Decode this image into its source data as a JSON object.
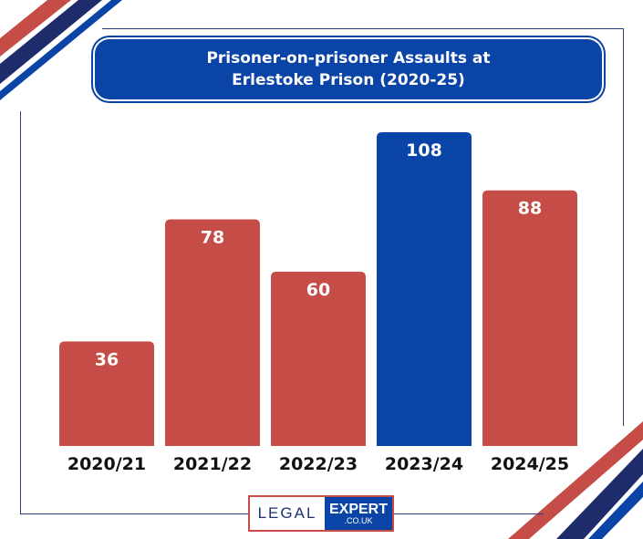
{
  "colors": {
    "bar_default": "#c64d47",
    "bar_highlight": "#0a44a6",
    "title_bg": "#0a44a6",
    "frame": "#2a3f7a"
  },
  "chart_data": {
    "type": "bar",
    "title_lines": [
      "Prisoner-on-prisoner Assaults at",
      "Erlestoke Prison (2020-25)"
    ],
    "categories": [
      "2020/21",
      "2021/22",
      "2022/23",
      "2023/24",
      "2024/25"
    ],
    "values": [
      36,
      78,
      60,
      108,
      88
    ],
    "highlight_index": 3,
    "data_labels": [
      "36",
      "78",
      "60",
      "108",
      "88"
    ],
    "xlabel": "",
    "ylabel": "",
    "ylim": [
      0,
      108
    ],
    "grid": false,
    "legend": "none"
  },
  "logo": {
    "word1": "LEGAL",
    "word2": "EXPERT",
    "domain": ".CO.UK"
  }
}
